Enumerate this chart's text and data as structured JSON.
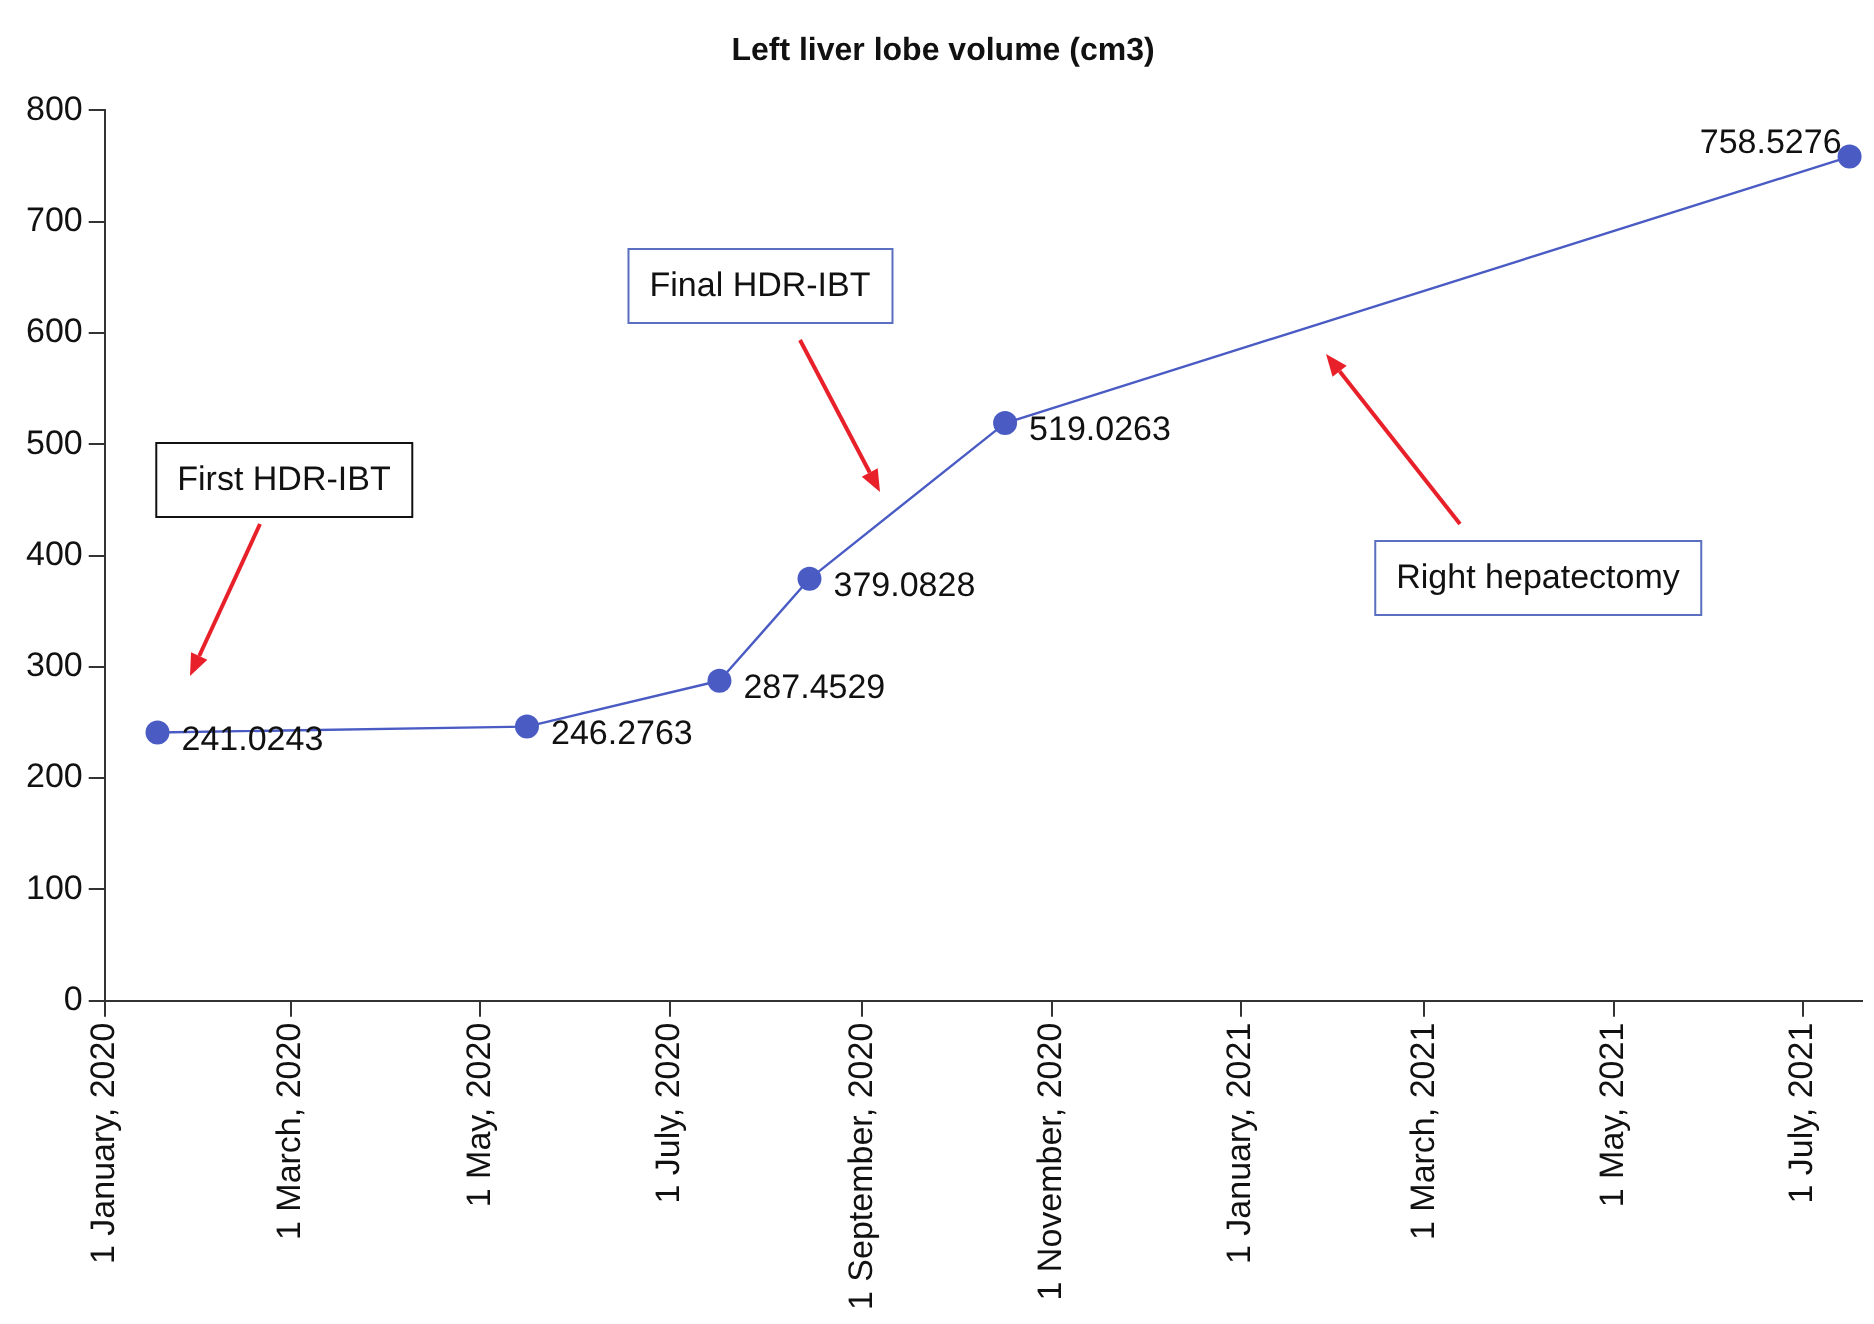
{
  "chart_data": {
    "type": "line",
    "title": "Left liver lobe volume (cm3)",
    "x": [
      "2020-01-18",
      "2020-05-16",
      "2020-07-17",
      "2020-08-15",
      "2020-10-17",
      "2021-07-16"
    ],
    "series": [
      {
        "color": "#4a5cc4",
        "values": [
          241.0243,
          246.2763,
          287.4529,
          379.0828,
          519.0263,
          758.5276
        ]
      }
    ],
    "marker": "circle",
    "line_style": "solid",
    "data_labels": true,
    "grid": false,
    "legend": false,
    "xlim": [
      "2020-01-01",
      "2021-07-20"
    ],
    "xticks": [
      {
        "value": "2020-01-01",
        "label": "1 January, 2020"
      },
      {
        "value": "2020-03-01",
        "label": "1 March, 2020"
      },
      {
        "value": "2020-05-01",
        "label": "1 May, 2020"
      },
      {
        "value": "2020-07-01",
        "label": "1 July, 2020"
      },
      {
        "value": "2020-09-01",
        "label": "1 September, 2020"
      },
      {
        "value": "2020-11-01",
        "label": "1 November, 2020"
      },
      {
        "value": "2021-01-01",
        "label": "1 January, 2021"
      },
      {
        "value": "2021-03-01",
        "label": "1 March, 2021"
      },
      {
        "value": "2021-05-01",
        "label": "1 May, 2021"
      },
      {
        "value": "2021-07-01",
        "label": "1 July, 2021"
      }
    ],
    "ylim": [
      0,
      800
    ],
    "yticks": [
      0,
      100,
      200,
      300,
      400,
      500,
      600,
      700,
      800
    ],
    "annotations": [
      "First HDR-IBT",
      "Final HDR-IBT",
      "Right hepatectomy"
    ]
  }
}
